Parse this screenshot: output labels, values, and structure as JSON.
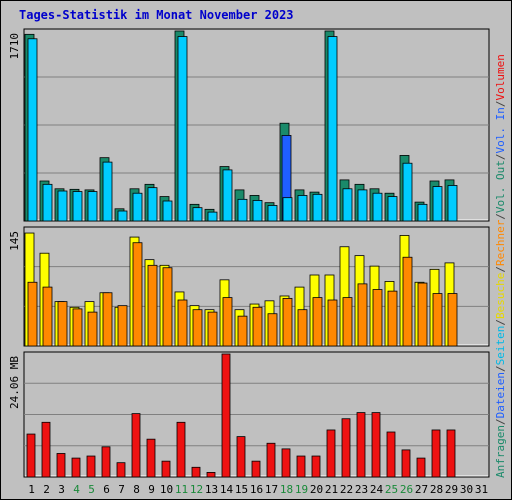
{
  "chart_data": {
    "type": "bar",
    "title": "Tages-Statistik im Monat November 2023",
    "categories": [
      "1",
      "2",
      "3",
      "4",
      "5",
      "6",
      "7",
      "8",
      "9",
      "10",
      "11",
      "12",
      "13",
      "14",
      "15",
      "16",
      "17",
      "18",
      "19",
      "20",
      "21",
      "22",
      "23",
      "24",
      "25",
      "26",
      "27",
      "28",
      "29",
      "30",
      "31"
    ],
    "weekend_days": [
      "4",
      "5",
      "11",
      "12",
      "18",
      "19",
      "25",
      "26"
    ],
    "panels": [
      {
        "name": "requests",
        "ymax_label": "1710",
        "ymax": 1710,
        "series": [
          {
            "name": "Anfragen",
            "color": "#1a8a6a",
            "values": [
              1680,
              360,
              290,
              285,
              280,
              570,
              110,
              290,
              330,
              220,
              1710,
              150,
              105,
              490,
              280,
              230,
              165,
              880,
              280,
              260,
              1710,
              370,
              330,
              290,
              250,
              590,
              170,
              360,
              370,
              0,
              0
            ]
          },
          {
            "name": "Dateien",
            "color": "#00ccff",
            "values": [
              1640,
              330,
              270,
              265,
              265,
              530,
              90,
              250,
              300,
              180,
              1660,
              120,
              80,
              460,
              195,
              185,
              140,
              210,
              230,
              240,
              1660,
              290,
              280,
              250,
              220,
              520,
              150,
              310,
              320,
              0,
              0
            ]
          },
          {
            "name": "Seiten",
            "color": "#1f5fff",
            "values": [
              0,
              0,
              0,
              0,
              0,
              0,
              0,
              0,
              0,
              0,
              0,
              0,
              0,
              0,
              0,
              0,
              0,
              770,
              0,
              0,
              0,
              0,
              0,
              0,
              0,
              0,
              0,
              0,
              0,
              0,
              0
            ]
          }
        ]
      },
      {
        "name": "visits",
        "ymax_label": "145",
        "ymax": 145,
        "series": [
          {
            "name": "Besuche",
            "color": "#ffff00",
            "values": [
              140,
              115,
              55,
              48,
              55,
              66,
              48,
              135,
              107,
              100,
              67,
              50,
              45,
              82,
              45,
              52,
              56,
              62,
              73,
              88,
              88,
              123,
              112,
              99,
              80,
              137,
              79,
              95,
              103,
              0,
              0
            ]
          },
          {
            "name": "Rechner",
            "color": "#ff8800",
            "values": [
              79,
              73,
              55,
              46,
              42,
              66,
              50,
              128,
              100,
              97,
              57,
              45,
              42,
              60,
              37,
              48,
              40,
              59,
              45,
              60,
              57,
              60,
              77,
              70,
              68,
              110,
              78,
              65,
              65,
              0,
              0
            ]
          }
        ]
      },
      {
        "name": "volume",
        "ymax_label": "24.06 MB",
        "ymax": 24.06,
        "series": [
          {
            "name": "Volumen",
            "color": "#ee1111",
            "values": [
              8.4,
              10.7,
              4.6,
              3.7,
              4.1,
              5.9,
              2.8,
              12.4,
              7.4,
              3.1,
              10.7,
              1.9,
              0.9,
              24.06,
              7.9,
              3.1,
              6.6,
              5.5,
              4.1,
              4.1,
              9.2,
              11.4,
              12.6,
              12.6,
              8.8,
              5.3,
              3.7,
              9.2,
              9.2,
              0,
              0
            ]
          }
        ]
      }
    ],
    "legend_right": [
      {
        "text": "Anfragen",
        "color": "#1a8a6a"
      },
      {
        "text": "/",
        "color": "#444444"
      },
      {
        "text": "Dateien",
        "color": "#1f5fff"
      },
      {
        "text": "/",
        "color": "#444444"
      },
      {
        "text": "Seiten",
        "color": "#00b8e6"
      },
      {
        "text": "/",
        "color": "#444444"
      },
      {
        "text": "Besuche",
        "color": "#e6d800"
      },
      {
        "text": "/",
        "color": "#444444"
      },
      {
        "text": "Rechner",
        "color": "#ff8800"
      },
      {
        "text": "/",
        "color": "#444444"
      },
      {
        "text": "Vol. Out",
        "color": "#1a8a6a"
      },
      {
        "text": "/",
        "color": "#444444"
      },
      {
        "text": "Vol. In",
        "color": "#1f5fff"
      },
      {
        "text": "/",
        "color": "#444444"
      },
      {
        "text": "Volumen",
        "color": "#ee1111"
      }
    ],
    "colors": {
      "background": "#c0c0c0",
      "plot": "#c0c0c0",
      "title": "#0000cc",
      "weekday_label": "#000000",
      "weekend_label": "#1a8a3a",
      "axis_label": "#000000"
    }
  }
}
